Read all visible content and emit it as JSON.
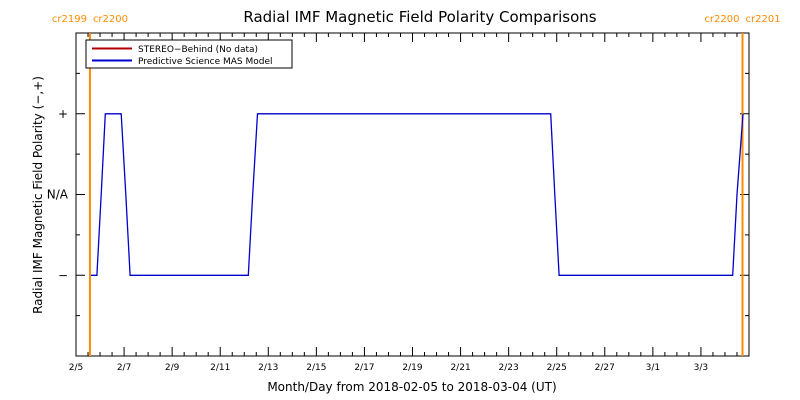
{
  "chart_data": {
    "type": "line",
    "title": "Radial IMF Magnetic Field Polarity Comparisons",
    "xlabel": "Month/Day from 2018-02-05 to 2018-03-04 (UT)",
    "ylabel": "Radial IMF Magnetic Field Polarity (−,+)",
    "xlim": [
      0,
      28
    ],
    "ylim": [
      -2,
      2
    ],
    "x_ticks": [
      {
        "v": 0,
        "label": "2/5"
      },
      {
        "v": 2,
        "label": "2/7"
      },
      {
        "v": 4,
        "label": "2/9"
      },
      {
        "v": 6,
        "label": "2/11"
      },
      {
        "v": 8,
        "label": "2/13"
      },
      {
        "v": 10,
        "label": "2/15"
      },
      {
        "v": 12,
        "label": "2/17"
      },
      {
        "v": 14,
        "label": "2/19"
      },
      {
        "v": 16,
        "label": "2/21"
      },
      {
        "v": 18,
        "label": "2/23"
      },
      {
        "v": 20,
        "label": "2/25"
      },
      {
        "v": 22,
        "label": "2/27"
      },
      {
        "v": 24,
        "label": "3/1"
      },
      {
        "v": 26,
        "label": "3/3"
      }
    ],
    "y_ticks": [
      {
        "v": 1,
        "label": "+"
      },
      {
        "v": 0,
        "label": "N/A"
      },
      {
        "v": -1,
        "label": "−"
      }
    ],
    "carrington_markers": [
      {
        "x": 0.58,
        "left_label": "cr2199",
        "right_label": "cr2200",
        "color": "#ff8c00"
      },
      {
        "x": 27.73,
        "left_label": "cr2200",
        "right_label": "cr2201",
        "color": "#ff8c00"
      }
    ],
    "legend_position": "top-left",
    "series": [
      {
        "name": "STEREO−Behind (No data)",
        "color": "#b00000",
        "x": [],
        "y": []
      },
      {
        "name": "Predictive Science MAS Model",
        "color": "#0000cc",
        "x": [
          0.62,
          0.87,
          1.05,
          1.22,
          1.88,
          2.07,
          2.25,
          7.17,
          7.35,
          7.55,
          19.75,
          19.92,
          20.1,
          27.32,
          27.5,
          27.75
        ],
        "y": [
          -1,
          -1,
          0,
          1,
          1,
          0,
          -1,
          -1,
          0,
          1,
          1,
          0,
          -1,
          -1,
          0,
          1
        ]
      }
    ]
  }
}
